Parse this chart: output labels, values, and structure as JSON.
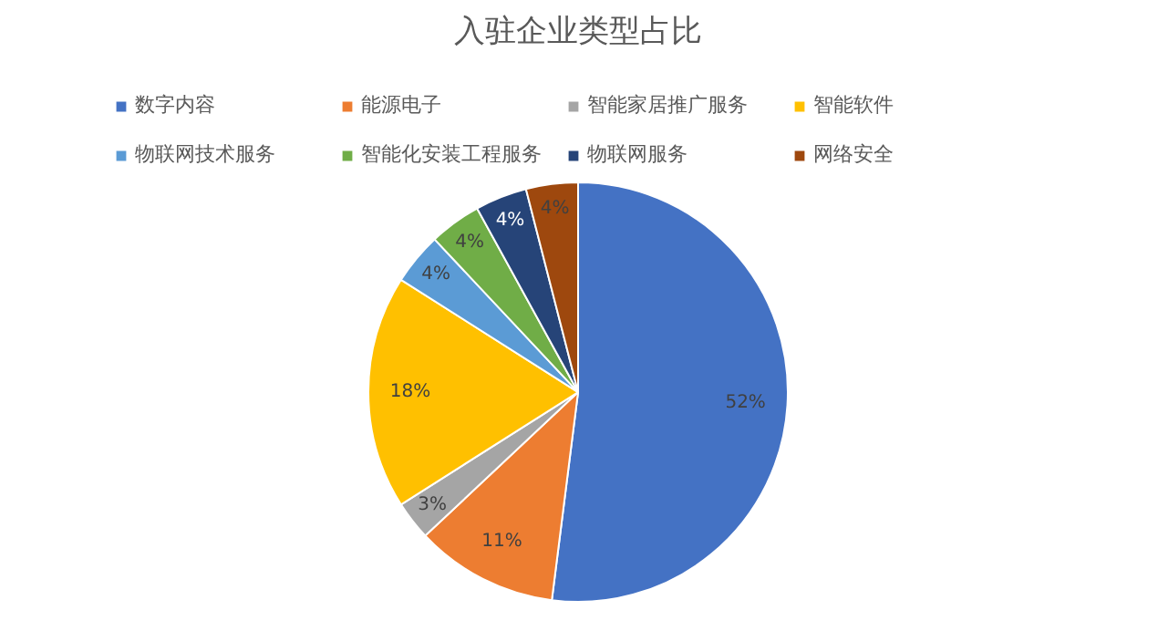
{
  "chart_data": {
    "type": "pie",
    "title": "入驻企业类型占比",
    "categories": [
      "数字内容",
      "能源电子",
      "智能家居推广服务",
      "智能软件",
      "物联网技术服务",
      "智能化安装工程服务",
      "物联网服务",
      "网络安全"
    ],
    "values": [
      52,
      11,
      3,
      18,
      4,
      4,
      4,
      4
    ],
    "colors": [
      "#4472c4",
      "#ed7d31",
      "#a5a5a5",
      "#ffc000",
      "#5b9bd5",
      "#70ad47",
      "#264478",
      "#9e480e"
    ],
    "value_labels": [
      "52%",
      "11%",
      "3%",
      "18%",
      "4%",
      "4%",
      "4%",
      "4%"
    ],
    "legend": "top"
  }
}
